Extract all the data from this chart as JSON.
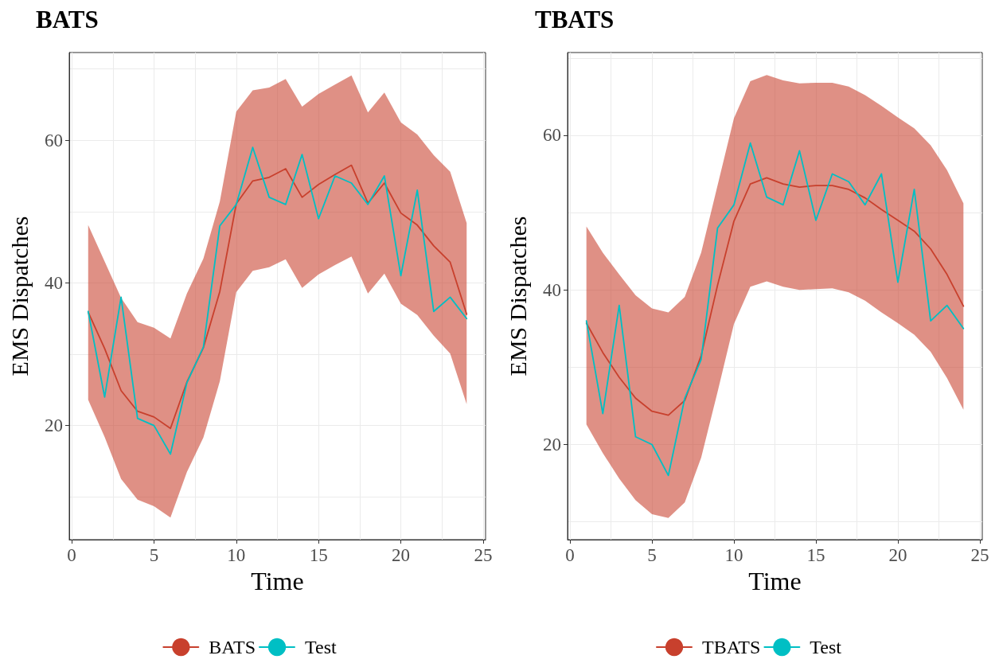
{
  "chart_data": [
    {
      "type": "line",
      "title": "BATS",
      "xlabel": "Time",
      "ylabel": "EMS Dispatches",
      "legend": "bottom",
      "grid": true,
      "x": [
        1,
        2,
        3,
        4,
        5,
        6,
        7,
        8,
        9,
        10,
        11,
        12,
        13,
        14,
        15,
        16,
        17,
        18,
        19,
        20,
        21,
        22,
        23,
        24
      ],
      "xlim": [
        -0.15,
        25.15
      ],
      "xticks": [
        0,
        {
          "value": 2.5,
          "label": null
        },
        5,
        {
          "value": 7.5,
          "label": null
        },
        10,
        {
          "value": 12.5,
          "label": null
        },
        15,
        {
          "value": 17.5,
          "label": null
        },
        20,
        {
          "value": 22.5,
          "label": null
        },
        25
      ],
      "ylim": [
        4.0,
        72.3
      ],
      "yticks": [
        {
          "value": 10,
          "label": null
        },
        20,
        {
          "value": 30,
          "label": null
        },
        40,
        {
          "value": 50,
          "label": null
        },
        60,
        {
          "value": 70,
          "label": null
        }
      ],
      "series": [
        {
          "name": "BATS",
          "color": "#c8402d",
          "values": [
            35.9,
            30.8,
            24.9,
            22.0,
            21.2,
            19.6,
            26.1,
            30.9,
            38.8,
            51.1,
            54.3,
            54.8,
            56.0,
            52.0,
            53.8,
            55.2,
            56.5,
            51.2,
            54.0,
            49.8,
            48.1,
            45.2,
            42.9,
            35.6
          ],
          "upper": [
            48.1,
            43.0,
            37.9,
            34.5,
            33.7,
            32.2,
            38.5,
            43.4,
            51.4,
            64.0,
            67.0,
            67.4,
            68.6,
            64.7,
            66.5,
            67.8,
            69.1,
            63.9,
            66.7,
            62.5,
            60.8,
            57.9,
            55.6,
            48.4
          ],
          "lower": [
            23.6,
            18.4,
            12.5,
            9.6,
            8.7,
            7.1,
            13.5,
            18.3,
            26.2,
            38.7,
            41.7,
            42.2,
            43.3,
            39.3,
            41.2,
            42.5,
            43.7,
            38.5,
            41.3,
            37.1,
            35.5,
            32.6,
            30.1,
            23.0
          ]
        },
        {
          "name": "Test",
          "color": "#00bfc4",
          "values": [
            36,
            24,
            38,
            21,
            20,
            16,
            26,
            31,
            48,
            51,
            59,
            52,
            51,
            58,
            49,
            55,
            54,
            51,
            55,
            41,
            53,
            36,
            38,
            35
          ]
        }
      ]
    },
    {
      "type": "line",
      "title": "TBATS",
      "xlabel": "Time",
      "ylabel": "EMS Dispatches",
      "legend": "bottom",
      "grid": true,
      "x": [
        1,
        2,
        3,
        4,
        5,
        6,
        7,
        8,
        9,
        10,
        11,
        12,
        13,
        14,
        15,
        16,
        17,
        18,
        19,
        20,
        21,
        22,
        23,
        24
      ],
      "xlim": [
        -0.15,
        25.15
      ],
      "xticks": [
        0,
        {
          "value": 2.5,
          "label": null
        },
        5,
        {
          "value": 7.5,
          "label": null
        },
        10,
        {
          "value": 12.5,
          "label": null
        },
        15,
        {
          "value": 17.5,
          "label": null
        },
        20,
        {
          "value": 22.5,
          "label": null
        },
        25
      ],
      "ylim": [
        7.7,
        70.7
      ],
      "yticks": [
        {
          "value": 10,
          "label": null
        },
        20,
        {
          "value": 30,
          "label": null
        },
        40,
        {
          "value": 50,
          "label": null
        },
        60,
        {
          "value": 70,
          "label": null
        }
      ],
      "series": [
        {
          "name": "TBATS",
          "color": "#c8402d",
          "values": [
            35.7,
            31.9,
            28.7,
            26.0,
            24.3,
            23.8,
            25.7,
            31.5,
            40.6,
            48.9,
            53.7,
            54.5,
            53.7,
            53.3,
            53.5,
            53.5,
            53.0,
            51.9,
            50.4,
            49.0,
            47.6,
            45.3,
            42.0,
            37.9
          ],
          "upper": [
            48.2,
            44.8,
            42.0,
            39.3,
            37.6,
            37.1,
            39.1,
            44.8,
            53.5,
            62.2,
            67.0,
            67.8,
            67.1,
            66.7,
            66.8,
            66.8,
            66.3,
            65.2,
            63.8,
            62.3,
            60.9,
            58.7,
            55.5,
            51.2
          ],
          "lower": [
            22.6,
            18.9,
            15.6,
            12.8,
            11.0,
            10.5,
            12.5,
            18.3,
            26.8,
            35.6,
            40.4,
            41.1,
            40.4,
            40.0,
            40.1,
            40.2,
            39.7,
            38.6,
            37.1,
            35.7,
            34.2,
            32.0,
            28.6,
            24.5
          ]
        },
        {
          "name": "Test",
          "color": "#00bfc4",
          "values": [
            36,
            24,
            38,
            21,
            20,
            16,
            26,
            31,
            48,
            51,
            59,
            52,
            51,
            58,
            49,
            55,
            54,
            51,
            55,
            41,
            53,
            36,
            38,
            35
          ]
        }
      ]
    }
  ]
}
